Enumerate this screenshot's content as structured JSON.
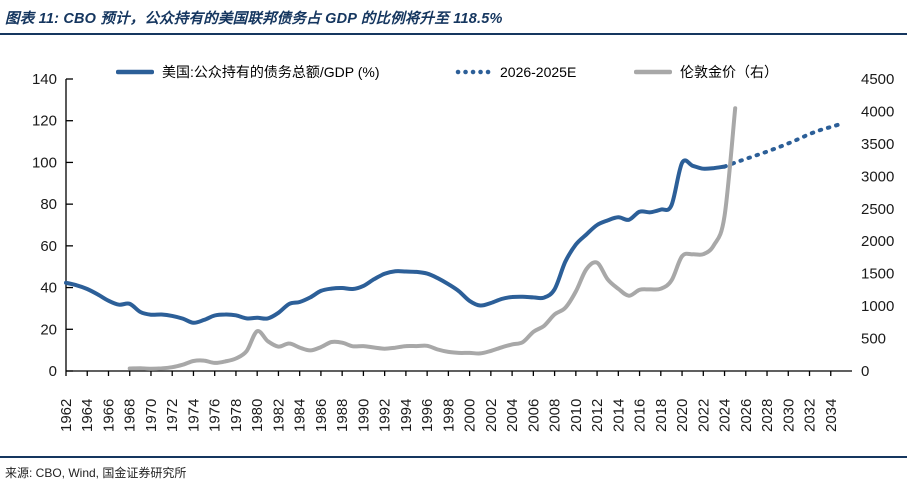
{
  "header": {
    "title": "图表 11: CBO 预计，公众持有的美国联邦债务占 GDP 的比例将升至 118.5%"
  },
  "footer": {
    "source": "来源: CBO, Wind, 国金证券研究所"
  },
  "colors": {
    "navy_accent": "#15365F",
    "line_blue": "#2C5F98",
    "line_gray": "#A8A8A8",
    "axis": "#000000",
    "tick_text": "#1A1A1A"
  },
  "legend": [
    {
      "label": "美国:公众持有的债务总额/GDP (%)",
      "marker": "solid-line",
      "color": "#2C5F98"
    },
    {
      "label": "2026-2025E",
      "marker": "dotted-line",
      "color": "#2C5F98"
    },
    {
      "label": "伦敦金价（右）",
      "marker": "solid-line",
      "color": "#A8A8A8"
    }
  ],
  "chart_data": {
    "type": "line",
    "title": "图表 11: CBO 预计，公众持有的美国联邦债务占 GDP 的比例将升至 118.5%",
    "legend_position": "top",
    "grid": false,
    "x_axis": {
      "range": [
        1962,
        2036
      ],
      "ticks": [
        1962,
        1964,
        1966,
        1968,
        1970,
        1972,
        1974,
        1976,
        1978,
        1980,
        1982,
        1984,
        1986,
        1988,
        1990,
        1992,
        1994,
        1996,
        1998,
        2000,
        2002,
        2004,
        2006,
        2008,
        2010,
        2012,
        2014,
        2016,
        2018,
        2020,
        2022,
        2024,
        2026,
        2028,
        2030,
        2032,
        2034
      ]
    },
    "y_left": {
      "range": [
        0,
        140
      ],
      "ticks": [
        0,
        20,
        40,
        60,
        80,
        100,
        120,
        140
      ]
    },
    "y_right": {
      "range": [
        0,
        4500
      ],
      "ticks": [
        0,
        500,
        1000,
        1500,
        2000,
        2500,
        3000,
        3500,
        4000,
        4500
      ]
    },
    "series": [
      {
        "name": "美国:公众持有的债务总额/GDP (%)",
        "axis": "left",
        "style": "solid",
        "color": "#2C5F98",
        "width": 4,
        "points": [
          [
            1962,
            42.3
          ],
          [
            1963,
            41.1
          ],
          [
            1964,
            39.3
          ],
          [
            1965,
            36.7
          ],
          [
            1966,
            33.7
          ],
          [
            1967,
            31.8
          ],
          [
            1968,
            32.2
          ],
          [
            1969,
            28.3
          ],
          [
            1970,
            27.0
          ],
          [
            1971,
            27.1
          ],
          [
            1972,
            26.4
          ],
          [
            1973,
            25.1
          ],
          [
            1974,
            23.1
          ],
          [
            1975,
            24.5
          ],
          [
            1976,
            26.6
          ],
          [
            1977,
            27.1
          ],
          [
            1978,
            26.7
          ],
          [
            1979,
            25.2
          ],
          [
            1980,
            25.5
          ],
          [
            1981,
            25.2
          ],
          [
            1982,
            27.9
          ],
          [
            1983,
            32.1
          ],
          [
            1984,
            33.1
          ],
          [
            1985,
            35.3
          ],
          [
            1986,
            38.4
          ],
          [
            1987,
            39.5
          ],
          [
            1988,
            39.8
          ],
          [
            1989,
            39.3
          ],
          [
            1990,
            40.8
          ],
          [
            1991,
            44.0
          ],
          [
            1992,
            46.6
          ],
          [
            1993,
            47.8
          ],
          [
            1994,
            47.7
          ],
          [
            1995,
            47.5
          ],
          [
            1996,
            46.7
          ],
          [
            1997,
            44.5
          ],
          [
            1998,
            41.6
          ],
          [
            1999,
            38.2
          ],
          [
            2000,
            33.6
          ],
          [
            2001,
            31.4
          ],
          [
            2002,
            32.6
          ],
          [
            2003,
            34.5
          ],
          [
            2004,
            35.5
          ],
          [
            2005,
            35.6
          ],
          [
            2006,
            35.3
          ],
          [
            2007,
            35.2
          ],
          [
            2008,
            39.2
          ],
          [
            2009,
            52.3
          ],
          [
            2010,
            60.6
          ],
          [
            2011,
            65.5
          ],
          [
            2012,
            70.0
          ],
          [
            2013,
            72.2
          ],
          [
            2014,
            73.7
          ],
          [
            2015,
            72.5
          ],
          [
            2016,
            76.4
          ],
          [
            2017,
            76.1
          ],
          [
            2018,
            77.4
          ],
          [
            2019,
            79.4
          ],
          [
            2020,
            99.8
          ],
          [
            2021,
            98.4
          ],
          [
            2022,
            97.0
          ],
          [
            2023,
            97.3
          ],
          [
            2024,
            98.0
          ]
        ]
      },
      {
        "name": "2026-2025E",
        "axis": "left",
        "style": "dotted",
        "color": "#2C5F98",
        "width": 4,
        "points": [
          [
            2024,
            98.0
          ],
          [
            2025,
            99.9
          ],
          [
            2026,
            101.7
          ],
          [
            2027,
            103.4
          ],
          [
            2028,
            105.2
          ],
          [
            2029,
            107.1
          ],
          [
            2030,
            109.1
          ],
          [
            2031,
            111.3
          ],
          [
            2032,
            113.6
          ],
          [
            2033,
            115.5
          ],
          [
            2034,
            117.0
          ],
          [
            2035,
            118.5
          ]
        ]
      },
      {
        "name": "伦敦金价（右）",
        "axis": "right",
        "style": "solid",
        "color": "#A8A8A8",
        "width": 4,
        "points": [
          [
            1968,
            38.9
          ],
          [
            1969,
            41.1
          ],
          [
            1970,
            35.9
          ],
          [
            1971,
            40.8
          ],
          [
            1972,
            58.2
          ],
          [
            1973,
            97.3
          ],
          [
            1974,
            154.0
          ],
          [
            1975,
            160.9
          ],
          [
            1976,
            124.7
          ],
          [
            1977,
            147.7
          ],
          [
            1978,
            193.2
          ],
          [
            1979,
            306.7
          ],
          [
            1980,
            612.6
          ],
          [
            1981,
            460.0
          ],
          [
            1982,
            375.8
          ],
          [
            1983,
            424.4
          ],
          [
            1984,
            360.5
          ],
          [
            1985,
            317.3
          ],
          [
            1986,
            367.7
          ],
          [
            1987,
            446.5
          ],
          [
            1988,
            436.9
          ],
          [
            1989,
            381.4
          ],
          [
            1990,
            383.5
          ],
          [
            1991,
            362.1
          ],
          [
            1992,
            343.8
          ],
          [
            1993,
            359.8
          ],
          [
            1994,
            384.0
          ],
          [
            1995,
            384.2
          ],
          [
            1996,
            387.9
          ],
          [
            1997,
            331.0
          ],
          [
            1998,
            294.2
          ],
          [
            1999,
            278.8
          ],
          [
            2000,
            279.1
          ],
          [
            2001,
            271.0
          ],
          [
            2002,
            309.7
          ],
          [
            2003,
            363.4
          ],
          [
            2004,
            409.2
          ],
          [
            2005,
            444.5
          ],
          [
            2006,
            603.5
          ],
          [
            2007,
            695.4
          ],
          [
            2008,
            871.9
          ],
          [
            2009,
            972.4
          ],
          [
            2010,
            1224.5
          ],
          [
            2011,
            1571.5
          ],
          [
            2012,
            1669.0
          ],
          [
            2013,
            1411.2
          ],
          [
            2014,
            1266.4
          ],
          [
            2015,
            1160.1
          ],
          [
            2016,
            1250.8
          ],
          [
            2017,
            1257.2
          ],
          [
            2018,
            1268.5
          ],
          [
            2019,
            1392.6
          ],
          [
            2020,
            1769.6
          ],
          [
            2021,
            1798.6
          ],
          [
            2022,
            1800.1
          ],
          [
            2023,
            1940.5
          ],
          [
            2024,
            2386.2
          ],
          [
            2025,
            4050.0
          ]
        ]
      }
    ]
  }
}
